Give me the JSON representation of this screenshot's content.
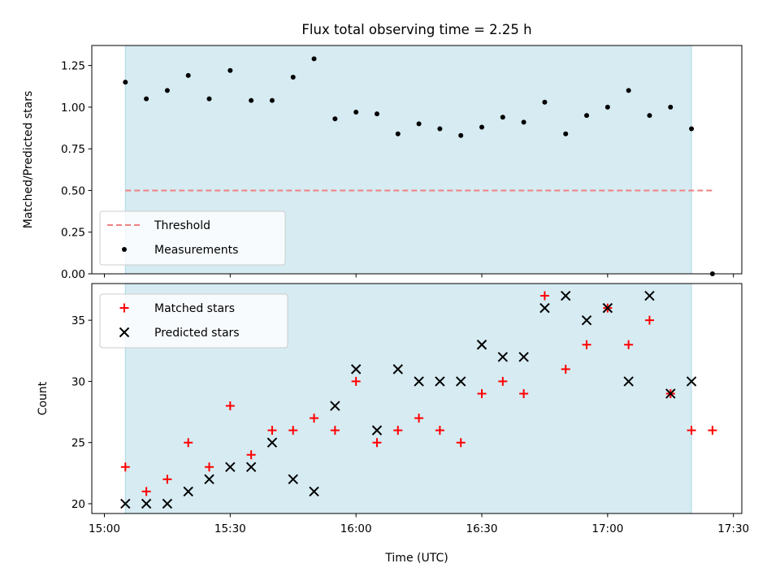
{
  "title": "Flux total observing time = 2.25 h",
  "xlabel": "Time (UTC)",
  "x_ticks": [
    "15:00",
    "15:30",
    "16:00",
    "16:30",
    "17:00",
    "17:30"
  ],
  "colors": {
    "span": "#add8e6",
    "threshold": "#f08080",
    "measurements": "#000000",
    "matched": "#ff0000",
    "predicted": "#000000"
  },
  "chart_data": [
    {
      "type": "scatter",
      "title": "Flux total observing time = 2.25 h",
      "ylabel": "Matched/Predicted stars",
      "ylim": [
        0,
        1.37
      ],
      "y_ticks": [
        "0.00",
        "0.25",
        "0.50",
        "0.75",
        "1.00",
        "1.25"
      ],
      "xlim": [
        "14:57",
        "17:32"
      ],
      "shaded_span": [
        "15:05",
        "17:20"
      ],
      "legend": {
        "placement": "lower left",
        "entries": [
          "Threshold",
          "Measurements"
        ]
      },
      "threshold": {
        "name": "Threshold",
        "value": 0.5,
        "x_range": [
          "15:05",
          "17:25"
        ]
      },
      "series": [
        {
          "name": "Measurements",
          "x": [
            "15:05",
            "15:10",
            "15:15",
            "15:20",
            "15:25",
            "15:30",
            "15:35",
            "15:40",
            "15:45",
            "15:50",
            "15:55",
            "16:00",
            "16:05",
            "16:10",
            "16:15",
            "16:20",
            "16:25",
            "16:30",
            "16:35",
            "16:40",
            "16:45",
            "16:50",
            "16:55",
            "17:00",
            "17:05",
            "17:10",
            "17:15",
            "17:20",
            "17:25"
          ],
          "values": [
            1.15,
            1.05,
            1.1,
            1.19,
            1.05,
            1.22,
            1.04,
            1.04,
            1.18,
            1.29,
            0.93,
            0.97,
            0.96,
            0.84,
            0.9,
            0.87,
            0.83,
            0.88,
            0.94,
            0.91,
            1.03,
            0.84,
            0.95,
            1.0,
            1.1,
            0.95,
            1.0,
            0.87,
            0.0
          ]
        }
      ]
    },
    {
      "type": "scatter",
      "ylabel": "Count",
      "xlabel": "Time (UTC)",
      "ylim": [
        19.2,
        38
      ],
      "y_ticks": [
        "20",
        "25",
        "30",
        "35"
      ],
      "x_ticks": [
        "15:00",
        "15:30",
        "16:00",
        "16:30",
        "17:00",
        "17:30"
      ],
      "xlim": [
        "14:57",
        "17:32"
      ],
      "shaded_span": [
        "15:05",
        "17:20"
      ],
      "legend": {
        "placement": "upper left",
        "entries": [
          "Matched stars",
          "Predicted stars"
        ]
      },
      "series": [
        {
          "name": "Matched stars",
          "marker": "+",
          "x": [
            "15:05",
            "15:10",
            "15:15",
            "15:20",
            "15:25",
            "15:30",
            "15:35",
            "15:40",
            "15:45",
            "15:50",
            "15:55",
            "16:00",
            "16:05",
            "16:10",
            "16:15",
            "16:20",
            "16:25",
            "16:30",
            "16:35",
            "16:40",
            "16:45",
            "16:50",
            "16:55",
            "17:00",
            "17:05",
            "17:10",
            "17:15",
            "17:20",
            "17:25"
          ],
          "values": [
            23,
            21,
            22,
            25,
            23,
            28,
            24,
            26,
            26,
            27,
            26,
            30,
            25,
            26,
            27,
            26,
            25,
            29,
            30,
            29,
            37,
            31,
            33,
            36,
            33,
            35,
            29,
            26,
            26
          ]
        },
        {
          "name": "Predicted stars",
          "marker": "x",
          "x": [
            "15:05",
            "15:10",
            "15:15",
            "15:20",
            "15:25",
            "15:30",
            "15:35",
            "15:40",
            "15:45",
            "15:50",
            "15:55",
            "16:00",
            "16:05",
            "16:10",
            "16:15",
            "16:20",
            "16:25",
            "16:30",
            "16:35",
            "16:40",
            "16:45",
            "16:50",
            "16:55",
            "17:00",
            "17:05",
            "17:10",
            "17:15",
            "17:20"
          ],
          "values": [
            20,
            20,
            20,
            21,
            22,
            23,
            23,
            25,
            22,
            21,
            28,
            31,
            26,
            31,
            30,
            30,
            30,
            33,
            32,
            32,
            36,
            37,
            35,
            36,
            30,
            37,
            29,
            30
          ]
        }
      ]
    }
  ]
}
